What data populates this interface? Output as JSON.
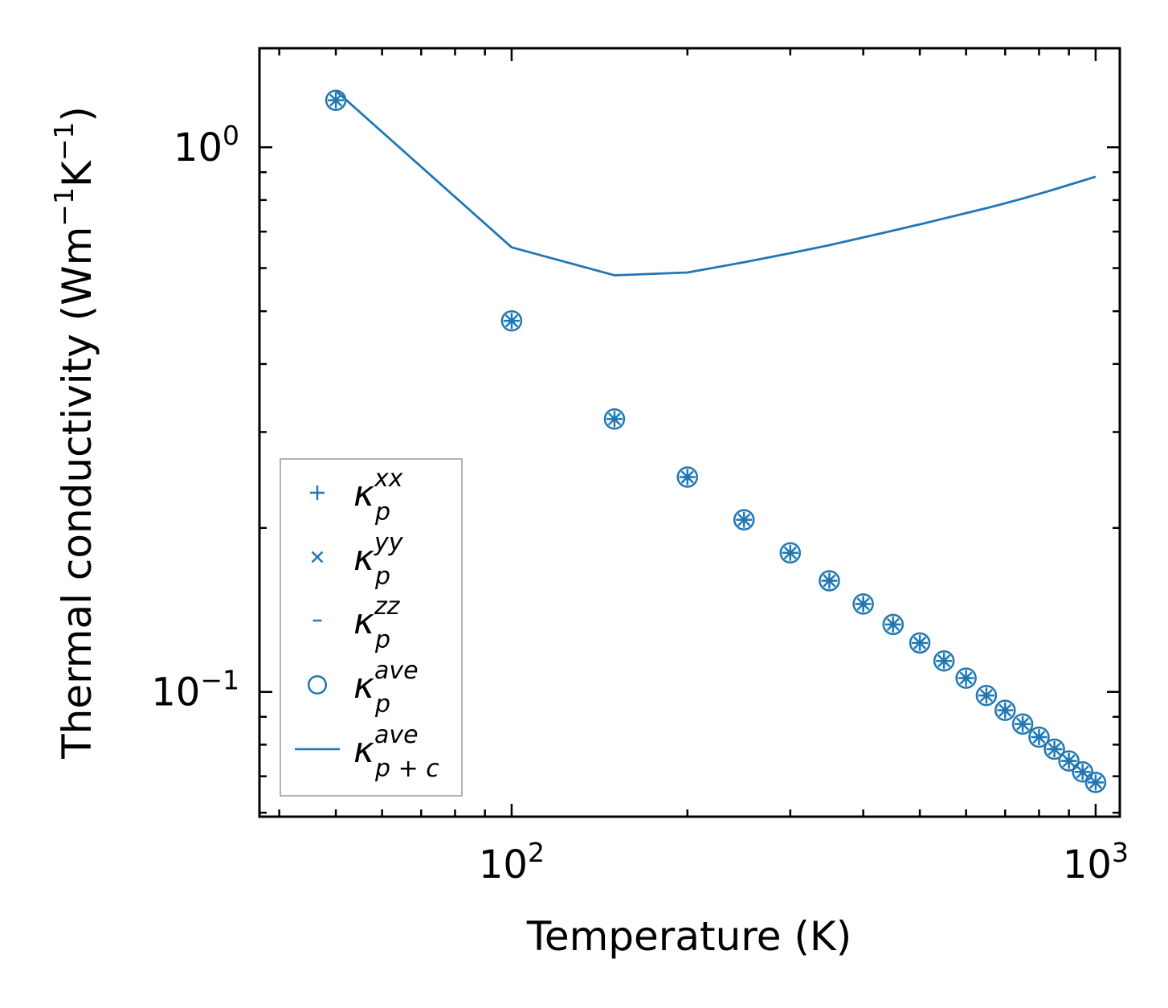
{
  "chart_data": {
    "type": "line",
    "title": "",
    "xlabel": "Temperature (K)",
    "ylabel": "Thermal conductivity (Wm$^{-1}$K$^{-1}$)",
    "ylabel_parts": {
      "base": "Thermal conductivity (Wm",
      "exp1": "−1",
      "mid": "K",
      "exp2": "−1",
      "end": ")"
    },
    "xscale": "log",
    "yscale": "log",
    "xlim": [
      37,
      1100
    ],
    "ylim": [
      0.059,
      1.52
    ],
    "xticks": [
      {
        "value": 100,
        "base": "10",
        "exp": "2"
      },
      {
        "value": 1000,
        "base": "10",
        "exp": "3"
      }
    ],
    "yticks": [
      {
        "value": 0.1,
        "base": "10",
        "exp": "−1"
      },
      {
        "value": 1,
        "base": "10",
        "exp": "0"
      }
    ],
    "x": [
      50,
      100,
      150,
      200,
      250,
      300,
      350,
      400,
      450,
      500,
      550,
      600,
      650,
      700,
      750,
      800,
      850,
      900,
      950,
      1000
    ],
    "series": [
      {
        "name": "κ_p^xx",
        "marker": "plus",
        "values": [
          1.22,
          0.48,
          0.317,
          0.248,
          0.207,
          0.18,
          0.16,
          0.145,
          0.133,
          0.123,
          0.114,
          0.106,
          0.0985,
          0.0925,
          0.0873,
          0.0826,
          0.0785,
          0.0747,
          0.0713,
          0.0682
        ]
      },
      {
        "name": "κ_p^yy",
        "marker": "x",
        "values": [
          1.22,
          0.48,
          0.317,
          0.248,
          0.207,
          0.18,
          0.16,
          0.145,
          0.133,
          0.123,
          0.114,
          0.106,
          0.0985,
          0.0925,
          0.0873,
          0.0826,
          0.0785,
          0.0747,
          0.0713,
          0.0682
        ]
      },
      {
        "name": "κ_p^zz",
        "marker": "hline",
        "values": [
          1.22,
          0.48,
          0.317,
          0.248,
          0.207,
          0.18,
          0.16,
          0.145,
          0.133,
          0.123,
          0.114,
          0.106,
          0.0985,
          0.0925,
          0.0873,
          0.0826,
          0.0785,
          0.0747,
          0.0713,
          0.0682
        ]
      },
      {
        "name": "κ_p^ave",
        "marker": "circle",
        "values": [
          1.22,
          0.48,
          0.317,
          0.248,
          0.207,
          0.18,
          0.16,
          0.145,
          0.133,
          0.123,
          0.114,
          0.106,
          0.0985,
          0.0925,
          0.0873,
          0.0826,
          0.0785,
          0.0747,
          0.0713,
          0.0682
        ]
      },
      {
        "name": "κ_{p+c}^ave",
        "marker": "line",
        "values": [
          1.27,
          0.655,
          0.582,
          0.589,
          0.615,
          0.639,
          0.661,
          0.683,
          0.703,
          0.722,
          0.74,
          0.757,
          0.773,
          0.789,
          0.805,
          0.821,
          0.837,
          0.853,
          0.868,
          0.883
        ]
      }
    ],
    "legend": [
      {
        "base": "κ",
        "sup": "xx",
        "sub": "p",
        "marker": "plus"
      },
      {
        "base": "κ",
        "sup": "yy",
        "sub": "p",
        "marker": "x"
      },
      {
        "base": "κ",
        "sup": "zz",
        "sub": "p",
        "marker": "hline"
      },
      {
        "base": "κ",
        "sup": "ave",
        "sub": "p",
        "marker": "circle"
      },
      {
        "base": "κ",
        "sup": "ave",
        "sub": "p + c",
        "marker": "line"
      }
    ],
    "legend_position": "lower-left",
    "grid": false,
    "color": "#1f77b4"
  }
}
